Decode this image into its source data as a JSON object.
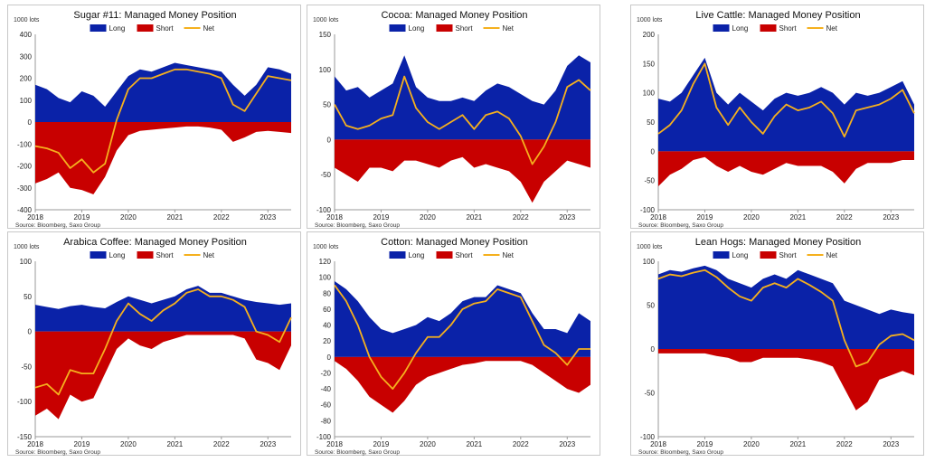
{
  "colors": {
    "long": "#0a22a8",
    "short": "#c80000",
    "net": "#f5b01e",
    "axis": "#999999"
  },
  "source_label": "Source: Bloomberg, Saxo Group",
  "legend": {
    "long": "Long",
    "short": "Short",
    "net": "Net"
  },
  "x_ticks": [
    "2018",
    "2019",
    "2020",
    "2021",
    "2022",
    "2023"
  ],
  "chart_data": [
    {
      "type": "area",
      "title": "Sugar #11: Managed Money Position",
      "units": "1000 lots",
      "ylim": [
        -400,
        400
      ],
      "yticks": [
        400,
        300,
        200,
        100,
        0,
        -100,
        -200,
        -300,
        -400
      ],
      "x": [
        2018.0,
        2018.25,
        2018.5,
        2018.75,
        2019.0,
        2019.25,
        2019.5,
        2019.75,
        2020.0,
        2020.25,
        2020.5,
        2020.75,
        2021.0,
        2021.25,
        2021.5,
        2021.75,
        2022.0,
        2022.25,
        2022.5,
        2022.75,
        2023.0,
        2023.25,
        2023.5
      ],
      "series": [
        {
          "name": "Long",
          "values": [
            170,
            150,
            110,
            90,
            140,
            120,
            70,
            140,
            210,
            240,
            230,
            250,
            270,
            260,
            250,
            240,
            230,
            170,
            120,
            170,
            250,
            240,
            220
          ]
        },
        {
          "name": "Short",
          "values": [
            -280,
            -260,
            -230,
            -300,
            -310,
            -330,
            -250,
            -130,
            -60,
            -40,
            -35,
            -30,
            -25,
            -20,
            -20,
            -25,
            -35,
            -90,
            -70,
            -45,
            -40,
            -45,
            -50
          ]
        },
        {
          "name": "Net",
          "values": [
            -110,
            -120,
            -140,
            -210,
            -170,
            -230,
            -190,
            10,
            150,
            200,
            200,
            220,
            240,
            240,
            230,
            220,
            200,
            80,
            50,
            130,
            210,
            200,
            190
          ]
        }
      ]
    },
    {
      "type": "area",
      "title": "Cocoa: Managed Money Position",
      "units": "1000 lots",
      "ylim": [
        -100,
        150
      ],
      "yticks": [
        150,
        100,
        50,
        0,
        -50,
        -100
      ],
      "x": [
        2018.0,
        2018.25,
        2018.5,
        2018.75,
        2019.0,
        2019.25,
        2019.5,
        2019.75,
        2020.0,
        2020.25,
        2020.5,
        2020.75,
        2021.0,
        2021.25,
        2021.5,
        2021.75,
        2022.0,
        2022.25,
        2022.5,
        2022.75,
        2023.0,
        2023.25,
        2023.5
      ],
      "series": [
        {
          "name": "Long",
          "values": [
            90,
            70,
            75,
            60,
            70,
            80,
            120,
            75,
            60,
            55,
            55,
            60,
            55,
            70,
            80,
            75,
            65,
            55,
            50,
            70,
            105,
            120,
            110
          ]
        },
        {
          "name": "Short",
          "values": [
            -40,
            -50,
            -60,
            -40,
            -40,
            -45,
            -30,
            -30,
            -35,
            -40,
            -30,
            -25,
            -40,
            -35,
            -40,
            -45,
            -60,
            -90,
            -60,
            -45,
            -30,
            -35,
            -40
          ]
        },
        {
          "name": "Net",
          "values": [
            50,
            20,
            15,
            20,
            30,
            35,
            90,
            45,
            25,
            15,
            25,
            35,
            15,
            35,
            40,
            30,
            5,
            -35,
            -10,
            25,
            75,
            85,
            70
          ]
        }
      ]
    },
    {
      "type": "area",
      "title": "Live Cattle: Managed Money Position",
      "units": "1000 lots",
      "ylim": [
        -100,
        200
      ],
      "yticks": [
        200,
        150,
        100,
        50,
        0,
        -50,
        -100
      ],
      "x": [
        2018.0,
        2018.25,
        2018.5,
        2018.75,
        2019.0,
        2019.25,
        2019.5,
        2019.75,
        2020.0,
        2020.25,
        2020.5,
        2020.75,
        2021.0,
        2021.25,
        2021.5,
        2021.75,
        2022.0,
        2022.25,
        2022.5,
        2022.75,
        2023.0,
        2023.25,
        2023.5
      ],
      "series": [
        {
          "name": "Long",
          "values": [
            90,
            85,
            100,
            130,
            160,
            100,
            80,
            100,
            85,
            70,
            90,
            100,
            95,
            100,
            110,
            100,
            80,
            100,
            95,
            100,
            110,
            120,
            80
          ]
        },
        {
          "name": "Short",
          "values": [
            -60,
            -40,
            -30,
            -15,
            -10,
            -25,
            -35,
            -25,
            -35,
            -40,
            -30,
            -20,
            -25,
            -25,
            -25,
            -35,
            -55,
            -30,
            -20,
            -20,
            -20,
            -15,
            -15
          ]
        },
        {
          "name": "Net",
          "values": [
            30,
            45,
            70,
            115,
            150,
            75,
            45,
            75,
            50,
            30,
            60,
            80,
            70,
            75,
            85,
            65,
            25,
            70,
            75,
            80,
            90,
            105,
            65
          ]
        }
      ]
    },
    {
      "type": "area",
      "title": "Arabica Coffee: Managed Money Position",
      "units": "1000 lots",
      "ylim": [
        -150,
        100
      ],
      "yticks": [
        100,
        50,
        0,
        -50,
        -100,
        -150
      ],
      "x": [
        2018.0,
        2018.25,
        2018.5,
        2018.75,
        2019.0,
        2019.25,
        2019.5,
        2019.75,
        2020.0,
        2020.25,
        2020.5,
        2020.75,
        2021.0,
        2021.25,
        2021.5,
        2021.75,
        2022.0,
        2022.25,
        2022.5,
        2022.75,
        2023.0,
        2023.25,
        2023.5
      ],
      "series": [
        {
          "name": "Long",
          "values": [
            38,
            35,
            32,
            36,
            38,
            35,
            33,
            42,
            50,
            45,
            40,
            45,
            50,
            60,
            65,
            55,
            55,
            50,
            45,
            42,
            40,
            38,
            40
          ]
        },
        {
          "name": "Short",
          "values": [
            -120,
            -110,
            -125,
            -90,
            -100,
            -95,
            -60,
            -25,
            -10,
            -20,
            -25,
            -15,
            -10,
            -5,
            -5,
            -5,
            -5,
            -5,
            -10,
            -40,
            -45,
            -55,
            -20
          ]
        },
        {
          "name": "Net",
          "values": [
            -80,
            -75,
            -90,
            -55,
            -60,
            -60,
            -25,
            15,
            40,
            25,
            15,
            30,
            40,
            55,
            60,
            50,
            50,
            45,
            35,
            0,
            -5,
            -15,
            20
          ]
        }
      ]
    },
    {
      "type": "area",
      "title": "Cotton: Managed Money Position",
      "units": "1000 lots",
      "ylim": [
        -100,
        120
      ],
      "yticks": [
        120,
        100,
        80,
        60,
        40,
        20,
        0,
        -20,
        -40,
        -60,
        -80,
        -100
      ],
      "x": [
        2018.0,
        2018.25,
        2018.5,
        2018.75,
        2019.0,
        2019.25,
        2019.5,
        2019.75,
        2020.0,
        2020.25,
        2020.5,
        2020.75,
        2021.0,
        2021.25,
        2021.5,
        2021.75,
        2022.0,
        2022.25,
        2022.5,
        2022.75,
        2023.0,
        2023.25,
        2023.5
      ],
      "series": [
        {
          "name": "Long",
          "values": [
            95,
            85,
            70,
            50,
            35,
            30,
            35,
            40,
            50,
            45,
            55,
            70,
            75,
            75,
            90,
            85,
            80,
            55,
            35,
            35,
            30,
            55,
            45
          ]
        },
        {
          "name": "Short",
          "values": [
            -5,
            -15,
            -30,
            -50,
            -60,
            -70,
            -55,
            -35,
            -25,
            -20,
            -15,
            -10,
            -8,
            -5,
            -5,
            -5,
            -5,
            -10,
            -20,
            -30,
            -40,
            -45,
            -35
          ]
        },
        {
          "name": "Net",
          "values": [
            90,
            70,
            40,
            0,
            -25,
            -40,
            -20,
            5,
            25,
            25,
            40,
            60,
            67,
            70,
            85,
            80,
            75,
            45,
            15,
            5,
            -10,
            10,
            10
          ]
        }
      ]
    },
    {
      "type": "area",
      "title": "Lean Hogs: Managed Money Position",
      "units": "1000 lots",
      "ylim": [
        -100,
        100
      ],
      "yticks": [
        100,
        50,
        0,
        -50,
        -100
      ],
      "x": [
        2018.0,
        2018.25,
        2018.5,
        2018.75,
        2019.0,
        2019.25,
        2019.5,
        2019.75,
        2020.0,
        2020.25,
        2020.5,
        2020.75,
        2021.0,
        2021.25,
        2021.5,
        2021.75,
        2022.0,
        2022.25,
        2022.5,
        2022.75,
        2023.0,
        2023.25,
        2023.5
      ],
      "series": [
        {
          "name": "Long",
          "values": [
            85,
            90,
            88,
            92,
            95,
            90,
            80,
            75,
            70,
            80,
            85,
            80,
            90,
            85,
            80,
            75,
            55,
            50,
            45,
            40,
            45,
            42,
            40
          ]
        },
        {
          "name": "Short",
          "values": [
            -5,
            -5,
            -5,
            -5,
            -5,
            -8,
            -10,
            -15,
            -15,
            -10,
            -10,
            -10,
            -10,
            -12,
            -15,
            -20,
            -45,
            -70,
            -60,
            -35,
            -30,
            -25,
            -30
          ]
        },
        {
          "name": "Net",
          "values": [
            80,
            85,
            83,
            87,
            90,
            82,
            70,
            60,
            55,
            70,
            75,
            70,
            80,
            73,
            65,
            55,
            10,
            -20,
            -15,
            5,
            15,
            17,
            10
          ]
        }
      ]
    }
  ]
}
